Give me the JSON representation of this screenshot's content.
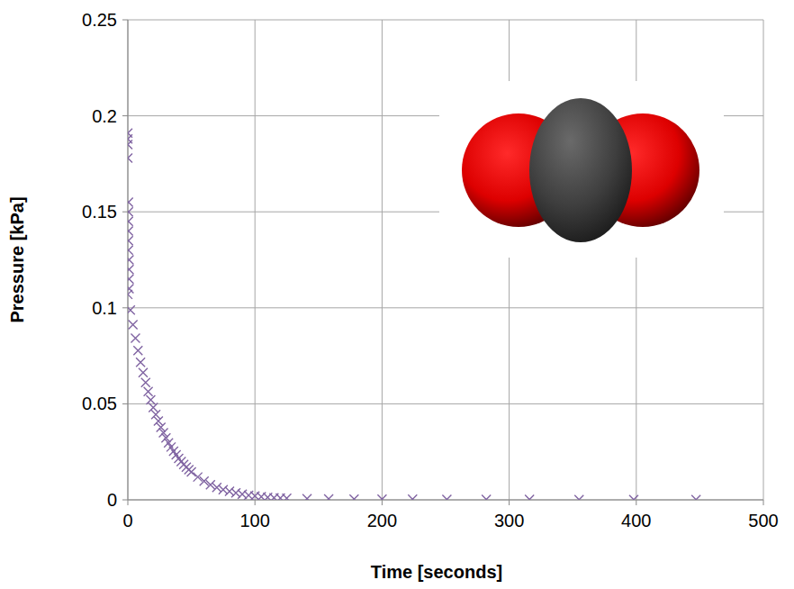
{
  "chart_data": {
    "type": "scatter",
    "x_label": "Time [seconds]",
    "y_label": "Pressure [kPa]",
    "x": [
      0,
      0,
      0,
      0,
      0.5,
      0.5,
      0.5,
      0.5,
      0.5,
      0.5,
      1,
      1,
      1,
      1,
      0,
      2,
      4,
      6,
      8,
      10,
      12,
      14,
      16,
      18,
      20,
      22,
      24,
      26,
      28,
      30,
      32,
      34,
      36,
      38,
      40,
      42,
      44,
      46,
      48,
      50,
      55,
      60,
      65,
      70,
      75,
      80,
      85,
      90,
      95,
      100,
      105,
      110,
      115,
      120,
      125,
      141,
      158,
      178,
      200,
      224,
      251,
      282,
      316,
      355,
      398,
      447
    ],
    "values": [
      0.191,
      0.188,
      0.185,
      0.178,
      0.155,
      0.15,
      0.145,
      0.14,
      0.135,
      0.13,
      0.125,
      0.12,
      0.115,
      0.11,
      0.107,
      0.0988,
      0.0912,
      0.0842,
      0.0777,
      0.0717,
      0.0662,
      0.0611,
      0.0564,
      0.0521,
      0.0481,
      0.0444,
      0.041,
      0.0378,
      0.0349,
      0.0322,
      0.0297,
      0.0275,
      0.0253,
      0.0234,
      0.0216,
      0.0199,
      0.0184,
      0.017,
      0.0157,
      0.0145,
      0.0119,
      0.0097,
      0.0079,
      0.0065,
      0.0053,
      0.0044,
      0.0036,
      0.0029,
      0.0024,
      0.002,
      0.0016,
      0.0013,
      0.0011,
      0.0009,
      0.0008,
      0.0006,
      0.0005,
      0.0004,
      0.0003,
      0.0003,
      0.0002,
      0.0002,
      0.0002,
      0.0001,
      0.0001,
      0.0001
    ],
    "color": "#8064a2",
    "marker": "x",
    "xlim": [
      0,
      500
    ],
    "ylim": [
      0,
      0.25
    ],
    "xticks": [
      0,
      100,
      200,
      300,
      400,
      500
    ],
    "yticks": [
      0,
      0.05,
      0.1,
      0.15,
      0.2,
      0.25
    ],
    "grid": true
  }
}
